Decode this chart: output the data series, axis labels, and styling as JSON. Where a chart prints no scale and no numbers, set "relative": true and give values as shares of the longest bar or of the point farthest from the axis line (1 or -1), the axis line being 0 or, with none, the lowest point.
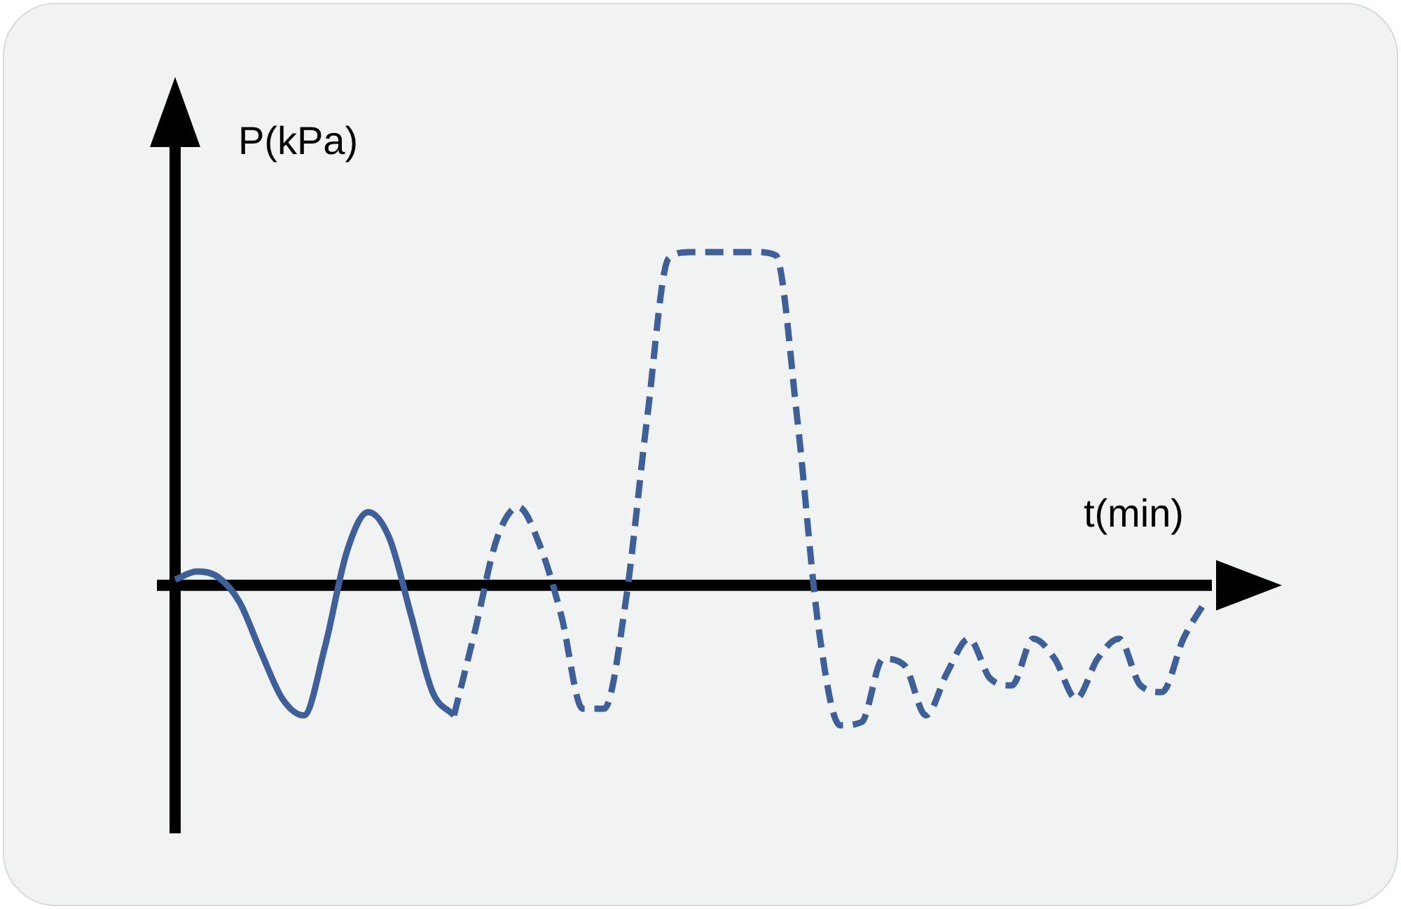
{
  "chart_data": {
    "type": "line",
    "relative": true,
    "xlabel": "t(min)",
    "ylabel": "P(kPa)",
    "marker": "none",
    "categories": [
      null,
      null,
      null,
      null,
      null,
      null,
      null,
      null,
      null,
      null,
      null,
      null,
      null,
      null,
      null,
      null,
      null,
      null,
      null,
      null,
      null,
      null,
      null,
      null,
      null,
      null,
      null,
      null,
      null,
      null,
      null,
      null,
      null,
      null,
      null,
      null,
      null,
      null,
      null,
      null,
      null,
      null,
      null,
      null,
      null,
      null,
      null,
      null,
      null
    ],
    "series": [
      {
        "color": "#3d5f9a",
        "line_style": "solid",
        "values": [
          0.017,
          0.042,
          0.025,
          -0.05,
          -0.2,
          -0.34,
          -0.39,
          -0.18,
          0.1,
          0.22,
          0.14,
          -0.09,
          -0.32,
          -0.39,
          null,
          null,
          null,
          null,
          null,
          null,
          null,
          null,
          null,
          null,
          null,
          null,
          null,
          null,
          null,
          null,
          null,
          null,
          null,
          null,
          null,
          null,
          null,
          null,
          null,
          null,
          null,
          null,
          null,
          null,
          null,
          null,
          null,
          null,
          null
        ]
      },
      {
        "color": "#3d5f9a",
        "line_style": "dashed",
        "values": [
          null,
          null,
          null,
          null,
          null,
          null,
          null,
          null,
          null,
          null,
          null,
          null,
          null,
          -0.39,
          -0.13,
          0.14,
          0.235,
          0.12,
          -0.09,
          -0.37,
          -0.37,
          -0.05,
          0.5,
          0.98,
          1,
          1,
          1,
          1,
          0.99,
          0.5,
          -0.13,
          -0.42,
          -0.41,
          -0.22,
          -0.24,
          -0.39,
          -0.26,
          -0.16,
          -0.28,
          -0.3,
          -0.16,
          -0.22,
          -0.34,
          -0.22,
          -0.16,
          -0.3,
          -0.32,
          -0.16,
          -0.05
        ]
      }
    ]
  }
}
